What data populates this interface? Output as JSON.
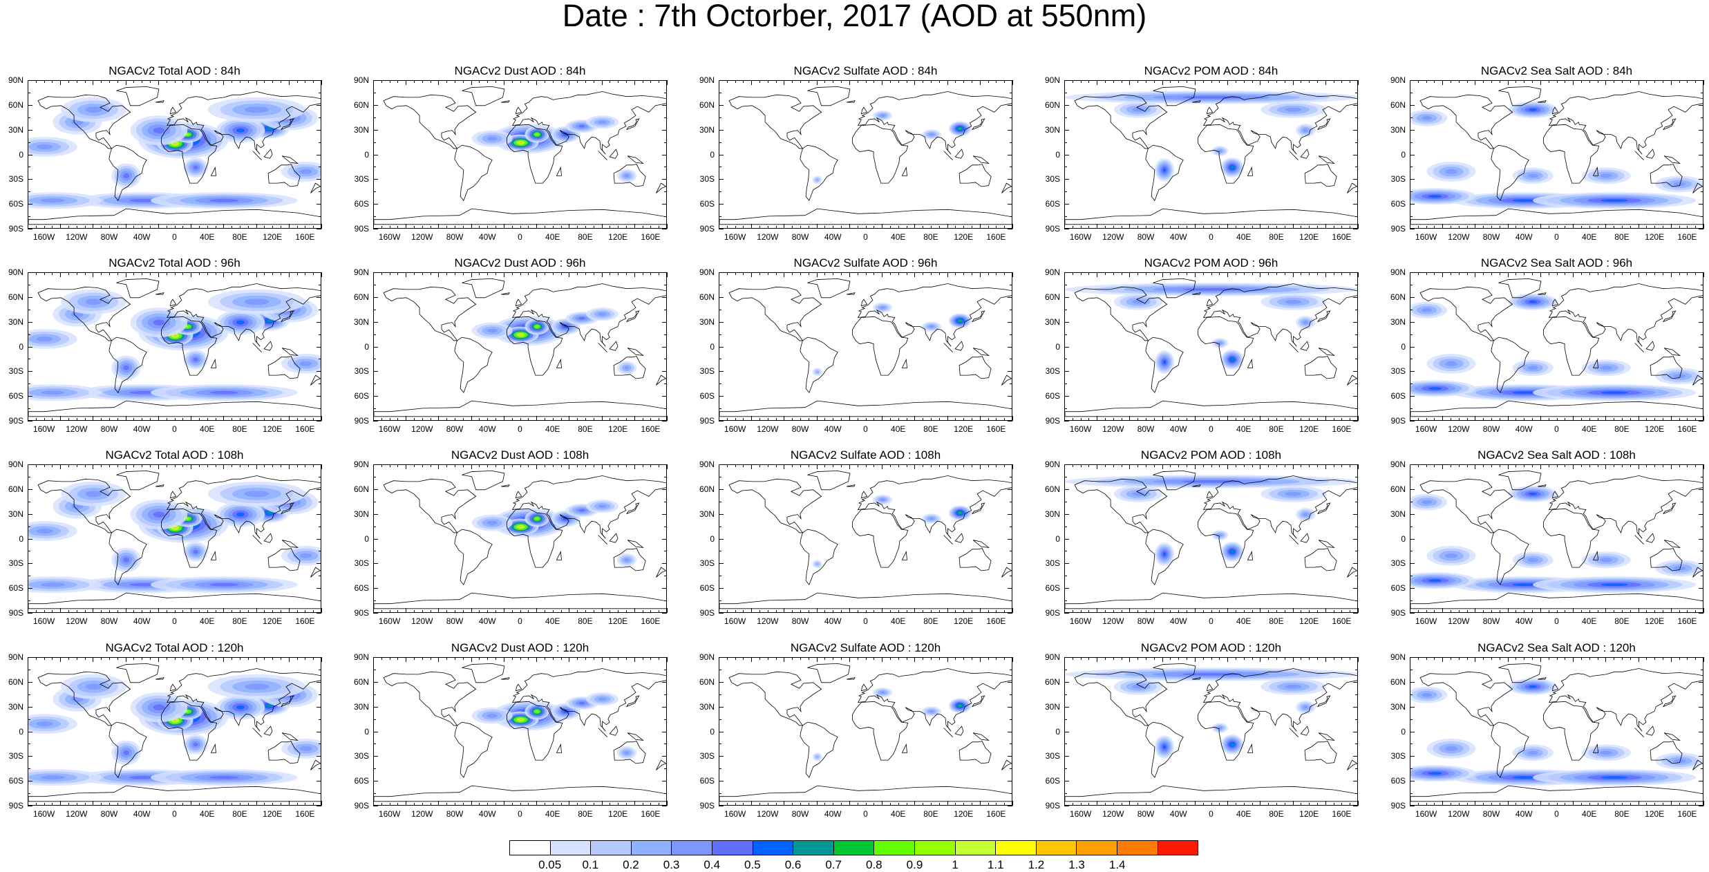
{
  "title": "Date : 7th Octorber, 2017 (AOD at 550nm)",
  "lat_labels": [
    "90N",
    "60N",
    "30N",
    "0",
    "30S",
    "60S",
    "90S"
  ],
  "lon_labels": [
    "160W",
    "120W",
    "80W",
    "40W",
    "0",
    "40E",
    "80E",
    "120E",
    "160E"
  ],
  "rows": [
    {
      "hour": "84h",
      "titles": [
        "NGACv2 Total AOD : 84h",
        "NGACv2 Dust AOD : 84h",
        "NGACv2 Sulfate AOD : 84h",
        "NGACv2 POM AOD : 84h",
        "NGACv2 Sea Salt AOD : 84h"
      ]
    },
    {
      "hour": "96h",
      "titles": [
        "NGACv2 Total AOD : 96h",
        "NGACv2 Dust AOD : 96h",
        "NGACv2 Sulfate AOD : 96h",
        "NGACv2 POM AOD : 96h",
        "NGACv2 Sea Salt AOD : 96h"
      ]
    },
    {
      "hour": "108h",
      "titles": [
        "NGACv2 Total AOD : 108h",
        "NGACv2 Dust AOD : 108h",
        "NGACv2 Sulfate AOD : 108h",
        "NGACv2 POM AOD : 108h",
        "NGACv2 Sea Salt AOD : 108h"
      ]
    },
    {
      "hour": "120h",
      "titles": [
        "NGACv2 Total AOD : 120h",
        "NGACv2 Dust AOD : 120h",
        "NGACv2 Sulfate AOD : 120h",
        "NGACv2 POM AOD : 120h",
        "NGACv2 Sea Salt  AOD : 120h"
      ]
    }
  ],
  "species": [
    "total",
    "dust",
    "sulfate",
    "pom",
    "seasalt"
  ],
  "colorbar": {
    "labels": [
      "0.05",
      "0.1",
      "0.2",
      "0.3",
      "0.4",
      "0.5",
      "0.6",
      "0.7",
      "0.8",
      "0.9",
      "1",
      "1.1",
      "1.2",
      "1.3",
      "1.4"
    ],
    "colors": [
      "#ffffff",
      "#d6e2ff",
      "#b5c9ff",
      "#8eb2ff",
      "#7f96ff",
      "#6370ff",
      "#0063ff",
      "#009696",
      "#00c633",
      "#63ff00",
      "#96ff00",
      "#c6ff33",
      "#ffff00",
      "#ffc600",
      "#ffa000",
      "#ff7c00",
      "#ff1900"
    ]
  }
}
